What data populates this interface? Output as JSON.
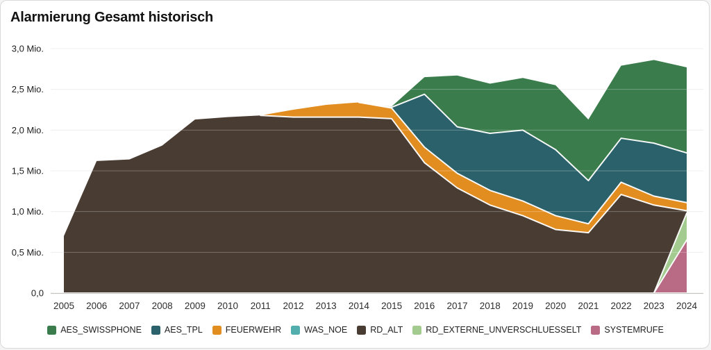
{
  "card": {
    "title": "Alarmierung Gesamt historisch"
  },
  "chart_data": {
    "type": "area",
    "stacked": true,
    "title": "Alarmierung Gesamt historisch",
    "unit": "Mio.",
    "x": [
      2005,
      2006,
      2007,
      2008,
      2009,
      2010,
      2011,
      2012,
      2013,
      2014,
      2015,
      2016,
      2017,
      2018,
      2019,
      2020,
      2021,
      2022,
      2023,
      2024
    ],
    "series": [
      {
        "name": "AES_SWISSPHONE",
        "color": "#3a7c4b",
        "values_mio": [
          0,
          0,
          0,
          0,
          0,
          0,
          0,
          0,
          0,
          0,
          0.01,
          0.21,
          0.63,
          0.61,
          0.64,
          0.79,
          0.75,
          0.89,
          1.02,
          1.05
        ]
      },
      {
        "name": "AES_TPL",
        "color": "#2a616a",
        "values_mio": [
          0,
          0,
          0,
          0,
          0,
          0,
          0,
          0,
          0,
          0,
          0.01,
          0.65,
          0.57,
          0.7,
          0.87,
          0.81,
          0.53,
          0.54,
          0.65,
          0.61
        ]
      },
      {
        "name": "FEUERWEHR",
        "color": "#e28d20",
        "values_mio": [
          0,
          0,
          0,
          0,
          0,
          0,
          0,
          0.09,
          0.15,
          0.18,
          0.13,
          0.19,
          0.18,
          0.18,
          0.18,
          0.17,
          0.11,
          0.15,
          0.11,
          0.1
        ]
      },
      {
        "name": "WAS_NOE",
        "color": "#52adad",
        "values_mio": [
          0,
          0,
          0,
          0,
          0,
          0,
          0,
          0,
          0,
          0,
          0,
          0,
          0,
          0,
          0,
          0,
          0,
          0,
          0,
          0
        ]
      },
      {
        "name": "RD_ALT",
        "color": "#493c33",
        "values_mio": [
          0.7,
          1.62,
          1.64,
          1.81,
          2.13,
          2.16,
          2.18,
          2.16,
          2.16,
          2.16,
          2.14,
          1.6,
          1.29,
          1.08,
          0.95,
          0.78,
          0.74,
          1.21,
          1.08,
          0.03
        ]
      },
      {
        "name": "RD_EXTERNE_UNVERSCHLUESSELT",
        "color": "#a3cb8f",
        "values_mio": [
          0,
          0,
          0,
          0,
          0,
          0,
          0,
          0,
          0,
          0,
          0,
          0,
          0,
          0,
          0,
          0,
          0,
          0,
          0,
          0.33
        ]
      },
      {
        "name": "SYSTEMRUFE",
        "color": "#b96a84",
        "values_mio": [
          0,
          0,
          0,
          0,
          0,
          0,
          0,
          0,
          0,
          0,
          0,
          0,
          0,
          0,
          0,
          0,
          0,
          0,
          0,
          0.65
        ]
      }
    ],
    "stack_order_bottom_to_top": [
      "SYSTEMRUFE",
      "RD_EXTERNE_UNVERSCHLUESSELT",
      "RD_ALT",
      "FEUERWEHR",
      "WAS_NOE",
      "AES_TPL",
      "AES_SWISSPHONE"
    ],
    "ylim_mio": [
      0,
      3.0
    ],
    "y_ticks": [
      {
        "value_mio": 0.0,
        "label": "0,0"
      },
      {
        "value_mio": 0.5,
        "label": "0,5 Mio."
      },
      {
        "value_mio": 1.0,
        "label": "1,0 Mio."
      },
      {
        "value_mio": 1.5,
        "label": "1,5 Mio."
      },
      {
        "value_mio": 2.0,
        "label": "2,0 Mio."
      },
      {
        "value_mio": 2.5,
        "label": "2,5 Mio."
      },
      {
        "value_mio": 3.0,
        "label": "3,0 Mio."
      }
    ],
    "grid": true,
    "legend_position": "bottom"
  }
}
